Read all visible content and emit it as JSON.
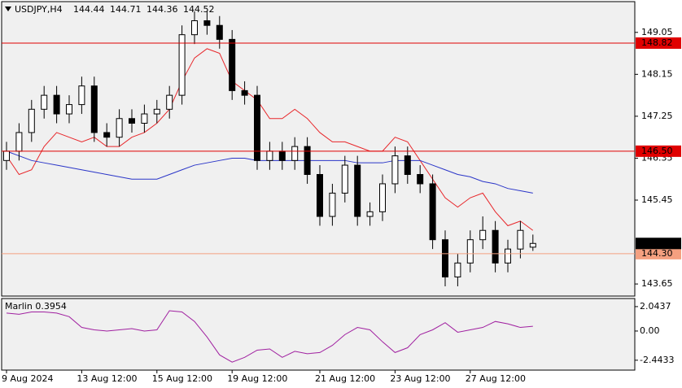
{
  "chart_data": [
    {
      "type": "candlestick",
      "title": "USDJPY,H4",
      "categories": [
        "9 Aug 2024",
        null,
        null,
        null,
        null,
        null,
        "13 Aug 12:00",
        null,
        null,
        null,
        null,
        null,
        "15 Aug 12:00",
        null,
        null,
        null,
        null,
        null,
        "19 Aug 12:00",
        null,
        null,
        null,
        null,
        null,
        null,
        "21 Aug 12:00",
        null,
        null,
        null,
        null,
        null,
        "23 Aug 12:00",
        null,
        null,
        null,
        null,
        null,
        "27 Aug 12:00",
        null,
        null,
        null,
        null,
        null
      ],
      "open": [
        146.3,
        146.5,
        146.9,
        147.4,
        147.7,
        147.3,
        147.5,
        147.9,
        146.9,
        146.8,
        147.2,
        147.1,
        147.3,
        147.4,
        147.7,
        149.0,
        149.3,
        149.2,
        148.9,
        147.8,
        147.7,
        146.3,
        146.5,
        146.3,
        146.6,
        146.0,
        145.1,
        145.6,
        146.2,
        145.1,
        145.2,
        145.8,
        146.4,
        146.0,
        145.8,
        144.6,
        143.8,
        144.1,
        144.6,
        144.8,
        144.1,
        144.4,
        144.44
      ],
      "high": [
        146.7,
        147.1,
        147.6,
        147.9,
        147.9,
        147.7,
        148.1,
        148.1,
        147.1,
        147.4,
        147.4,
        147.5,
        147.6,
        147.9,
        149.2,
        149.5,
        149.5,
        149.4,
        149.1,
        148.0,
        147.9,
        146.7,
        146.7,
        146.8,
        146.8,
        146.2,
        145.8,
        146.4,
        146.4,
        145.4,
        146.0,
        146.6,
        146.6,
        146.2,
        146.0,
        144.8,
        144.3,
        144.8,
        145.1,
        145.0,
        144.6,
        145.0,
        144.71
      ],
      "low": [
        146.1,
        146.3,
        146.7,
        147.2,
        147.1,
        147.1,
        147.3,
        146.7,
        146.6,
        146.6,
        146.9,
        146.9,
        147.1,
        147.2,
        147.5,
        148.8,
        149.0,
        148.7,
        147.6,
        147.5,
        146.1,
        146.1,
        146.1,
        146.1,
        145.8,
        144.9,
        144.9,
        145.4,
        144.9,
        144.9,
        145.0,
        145.6,
        145.8,
        145.6,
        144.4,
        143.6,
        143.6,
        143.9,
        144.4,
        143.9,
        143.9,
        144.2,
        144.36
      ],
      "close": [
        146.5,
        146.9,
        147.4,
        147.7,
        147.3,
        147.5,
        147.9,
        146.9,
        146.8,
        147.2,
        147.1,
        147.3,
        147.4,
        147.7,
        149.0,
        149.3,
        149.2,
        148.9,
        147.8,
        147.7,
        146.3,
        146.5,
        146.3,
        146.6,
        146.0,
        145.1,
        145.6,
        146.2,
        145.1,
        145.2,
        145.8,
        146.4,
        146.0,
        145.8,
        144.6,
        143.8,
        144.1,
        144.6,
        144.8,
        144.1,
        144.4,
        144.8,
        144.52
      ],
      "series": [
        {
          "color": "#e8262a",
          "values": [
            146.4,
            146.0,
            146.1,
            146.6,
            146.9,
            146.8,
            146.7,
            146.8,
            146.6,
            146.6,
            146.8,
            146.9,
            147.1,
            147.4,
            148.0,
            148.5,
            148.7,
            148.6,
            148.0,
            147.8,
            147.6,
            147.2,
            147.2,
            147.4,
            147.2,
            146.9,
            146.7,
            146.7,
            146.6,
            146.5,
            146.5,
            146.8,
            146.7,
            146.3,
            145.9,
            145.5,
            145.3,
            145.5,
            145.6,
            145.2,
            144.9,
            145.0,
            144.8
          ]
        },
        {
          "color": "#2a35c8",
          "values": [
            146.5,
            146.4,
            146.3,
            146.25,
            146.2,
            146.15,
            146.1,
            146.05,
            146.0,
            145.95,
            145.9,
            145.9,
            145.9,
            146.0,
            146.1,
            146.2,
            146.25,
            146.3,
            146.35,
            146.35,
            146.3,
            146.3,
            146.3,
            146.3,
            146.3,
            146.3,
            146.3,
            146.3,
            146.25,
            146.25,
            146.25,
            146.3,
            146.3,
            146.3,
            146.2,
            146.1,
            146.0,
            145.95,
            145.85,
            145.8,
            145.7,
            145.65,
            145.6
          ]
        }
      ],
      "levels": [
        {
          "value": 148.82,
          "color": "#e00000"
        },
        {
          "value": 146.5,
          "label": "146.50",
          "color": "#e00000"
        },
        {
          "value": 144.3,
          "label": "144.30",
          "color": "#f4a080"
        }
      ],
      "ylim": [
        143.39,
        149.71
      ],
      "yticks": [
        149.05,
        148.15,
        147.25,
        146.35,
        145.45,
        143.65
      ]
    },
    {
      "type": "line",
      "title": "Marlin 0.3954",
      "color": "#a020a0",
      "values": [
        1.5,
        1.4,
        1.6,
        1.6,
        1.5,
        1.2,
        0.3,
        0.1,
        0.0,
        0.1,
        0.2,
        0.0,
        0.1,
        1.7,
        1.6,
        0.8,
        -0.5,
        -2.0,
        -2.6,
        -2.2,
        -1.6,
        -1.5,
        -2.2,
        -1.7,
        -1.9,
        -1.8,
        -1.2,
        -0.3,
        0.3,
        0.1,
        -0.9,
        -1.8,
        -1.4,
        -0.3,
        0.1,
        0.7,
        -0.1,
        0.1,
        0.3,
        0.8,
        0.6,
        0.3,
        0.4
      ],
      "ylim": [
        -3.27,
        2.72
      ],
      "yticks": [
        2.0437,
        {
          "value": 0,
          "label": "0.00"
        },
        -2.4433
      ]
    }
  ]
}
